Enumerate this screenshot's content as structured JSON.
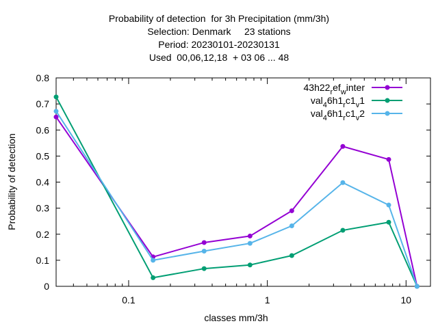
{
  "chart_data": {
    "type": "line",
    "title_lines": [
      "Probability of detection  for 3h Precipitation (mm/3h)",
      "Selection: Denmark     23 stations",
      "Period: 20230101-20230131",
      "Used  00,06,12,18  + 03 06 ... 48"
    ],
    "xlabel": "classes mm/3h",
    "ylabel": "Probability of detection",
    "x_scale": "log",
    "xlim": [
      0.03,
      15
    ],
    "ylim": [
      0,
      0.8
    ],
    "x_ticks": [
      0.1,
      1,
      10
    ],
    "x_tick_labels": [
      "0.1",
      "1",
      "10"
    ],
    "y_ticks": [
      0,
      0.1,
      0.2,
      0.3,
      0.4,
      0.5,
      0.6,
      0.7,
      0.8
    ],
    "y_tick_labels": [
      "0",
      "0.1",
      "0.2",
      "0.3",
      "0.4",
      "0.5",
      "0.6",
      "0.7",
      "0.8"
    ],
    "grid": false,
    "legend_position": "top-right",
    "x": [
      0.03,
      0.15,
      0.35,
      0.75,
      1.5,
      3.5,
      7.5,
      12
    ],
    "series": [
      {
        "name": "43h22_ref_winter",
        "legend_parts": [
          [
            "43h22",
            ""
          ],
          [
            "r",
            "sub"
          ],
          [
            "ef",
            ""
          ],
          [
            "w",
            "sub"
          ],
          [
            "inter",
            ""
          ]
        ],
        "color": "#9400d3",
        "values": [
          0.65,
          0.113,
          0.168,
          0.193,
          0.29,
          0.537,
          0.487,
          0.0
        ]
      },
      {
        "name": "val_46h1_rc1_v1",
        "legend_parts": [
          [
            "val",
            ""
          ],
          [
            "4",
            "sub"
          ],
          [
            "6h1",
            ""
          ],
          [
            "r",
            "sub"
          ],
          [
            "c1",
            ""
          ],
          [
            "v",
            "sub"
          ],
          [
            "1",
            ""
          ]
        ],
        "color": "#009e73",
        "values": [
          0.727,
          0.033,
          0.068,
          0.082,
          0.118,
          0.215,
          0.246,
          0.0
        ]
      },
      {
        "name": "val_46h1_rc1_v2",
        "legend_parts": [
          [
            "val",
            ""
          ],
          [
            "4",
            "sub"
          ],
          [
            "6h1",
            ""
          ],
          [
            "r",
            "sub"
          ],
          [
            "c1",
            ""
          ],
          [
            "v",
            "sub"
          ],
          [
            "2",
            ""
          ]
        ],
        "color": "#56b4e9",
        "values": [
          0.672,
          0.1,
          0.135,
          0.165,
          0.232,
          0.398,
          0.312,
          0.0
        ]
      }
    ]
  }
}
